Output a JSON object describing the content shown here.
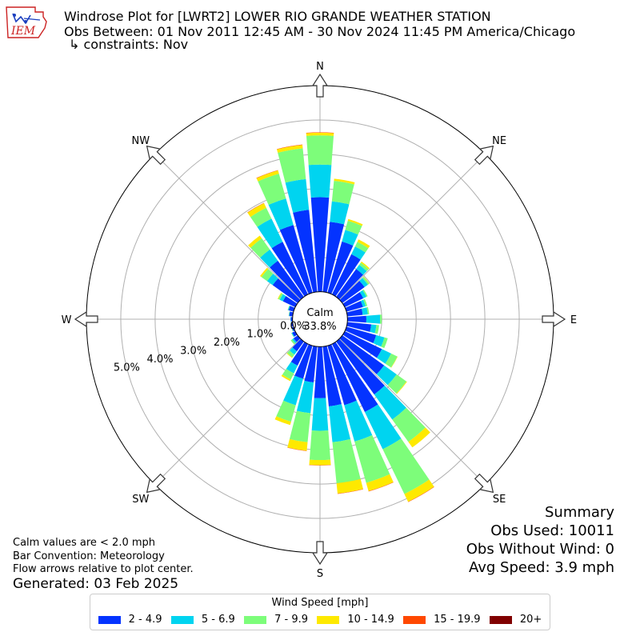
{
  "header": {
    "title_line1": "Windrose Plot for [LWRT2] LOWER RIO GRANDE WEATHER STATION",
    "title_line2": "Obs Between: 01 Nov 2011 12:45 AM - 30 Nov 2024 11:45 PM America/Chicago",
    "title_line3": "↳ constraints: Nov"
  },
  "logo": {
    "text": "IEM",
    "color": "#cc2222"
  },
  "notes": {
    "calm_note": "Calm values are < 2.0 mph",
    "bar_convention": "Bar Convention: Meteorology",
    "flow_note": "Flow arrows relative to plot center.",
    "generated": "Generated: 03 Feb 2025"
  },
  "summary": {
    "heading": "Summary",
    "obs_used": "Obs Used: 10011",
    "obs_without_wind": "Obs Without Wind: 0",
    "avg_speed": "Avg Speed: 3.9 mph"
  },
  "legend": {
    "title": "Wind Speed [mph]",
    "items": [
      {
        "label": "2 - 4.9",
        "color": "#0433ff"
      },
      {
        "label": "5 - 6.9",
        "color": "#00d4f0"
      },
      {
        "label": "7 - 9.9",
        "color": "#7dfd7a"
      },
      {
        "label": "10 - 14.9",
        "color": "#fee900"
      },
      {
        "label": "15 - 19.9",
        "color": "#ff4800"
      },
      {
        "label": "20+",
        "color": "#800000"
      }
    ]
  },
  "chart_data": {
    "type": "windrose",
    "calm_label": "Calm",
    "calm_percent": "33.8%",
    "radial_offset_percent": 0.8,
    "rmax_percent": 6.0,
    "radial_ticks": [
      "0.0%",
      "1.0%",
      "2.0%",
      "3.0%",
      "4.0%",
      "5.0%"
    ],
    "directions": [
      "N",
      "NE",
      "E",
      "SE",
      "S",
      "SW",
      "W",
      "NW"
    ],
    "bin_labels": [
      "2 - 4.9",
      "5 - 6.9",
      "7 - 9.9",
      "10 - 14.9",
      "15 - 19.9",
      "20+"
    ],
    "bin_colors": [
      "#0433ff",
      "#00d4f0",
      "#7dfd7a",
      "#fee900",
      "#ff4800",
      "#800000"
    ],
    "sectors": [
      {
        "dir": 0,
        "values": [
          2.75,
          0.95,
          0.85,
          0.08,
          0.01,
          0
        ]
      },
      {
        "dir": 10,
        "values": [
          2.05,
          0.6,
          0.6,
          0.06,
          0,
          0
        ]
      },
      {
        "dir": 20,
        "values": [
          1.55,
          0.35,
          0.28,
          0.05,
          0,
          0
        ]
      },
      {
        "dir": 30,
        "values": [
          1.3,
          0.25,
          0.15,
          0.08,
          0,
          0
        ]
      },
      {
        "dir": 40,
        "values": [
          1.0,
          0.15,
          0.08,
          0.04,
          0,
          0
        ]
      },
      {
        "dir": 50,
        "values": [
          0.8,
          0.12,
          0.05,
          0.01,
          0,
          0
        ]
      },
      {
        "dir": 60,
        "values": [
          0.6,
          0.1,
          0.04,
          0,
          0,
          0
        ]
      },
      {
        "dir": 70,
        "values": [
          0.5,
          0.08,
          0.05,
          0,
          0,
          0
        ]
      },
      {
        "dir": 80,
        "values": [
          0.45,
          0.15,
          0.04,
          0,
          0,
          0
        ]
      },
      {
        "dir": 90,
        "values": [
          0.55,
          0.4,
          0.05,
          0,
          0,
          0
        ]
      },
      {
        "dir": 100,
        "values": [
          0.7,
          0.15,
          0.08,
          0,
          0,
          0
        ]
      },
      {
        "dir": 110,
        "values": [
          0.9,
          0.25,
          0.1,
          0,
          0,
          0
        ]
      },
      {
        "dir": 120,
        "values": [
          1.2,
          0.3,
          0.2,
          0.01,
          0,
          0
        ]
      },
      {
        "dir": 130,
        "values": [
          1.5,
          0.45,
          0.35,
          0.02,
          0,
          0
        ]
      },
      {
        "dir": 140,
        "values": [
          1.9,
          0.9,
          0.8,
          0.2,
          0,
          0
        ]
      },
      {
        "dir": 150,
        "values": [
          2.2,
          1.2,
          1.45,
          0.25,
          0.01,
          0
        ]
      },
      {
        "dir": 160,
        "values": [
          1.8,
          1.1,
          1.25,
          0.25,
          0.01,
          0
        ]
      },
      {
        "dir": 170,
        "values": [
          1.75,
          1.05,
          1.2,
          0.3,
          0.01,
          0
        ]
      },
      {
        "dir": 180,
        "values": [
          1.5,
          0.95,
          0.85,
          0.15,
          0.01,
          0
        ]
      },
      {
        "dir": 190,
        "values": [
          1.05,
          0.9,
          0.85,
          0.25,
          0.01,
          0
        ]
      },
      {
        "dir": 200,
        "values": [
          1.0,
          0.8,
          0.5,
          0.1,
          0,
          0
        ]
      },
      {
        "dir": 210,
        "values": [
          0.7,
          0.25,
          0.2,
          0.05,
          0,
          0
        ]
      },
      {
        "dir": 220,
        "values": [
          0.35,
          0.12,
          0.1,
          0.02,
          0,
          0
        ]
      },
      {
        "dir": 230,
        "values": [
          0.15,
          0.05,
          0.05,
          0,
          0,
          0
        ]
      },
      {
        "dir": 240,
        "values": [
          0.1,
          0.02,
          0.01,
          0,
          0,
          0
        ]
      },
      {
        "dir": 250,
        "values": [
          0.05,
          0.01,
          0.01,
          0,
          0,
          0
        ]
      },
      {
        "dir": 260,
        "values": [
          0.05,
          0.01,
          0,
          0,
          0,
          0
        ]
      },
      {
        "dir": 270,
        "values": [
          0.05,
          0.01,
          0,
          0,
          0,
          0
        ]
      },
      {
        "dir": 280,
        "values": [
          0.1,
          0.01,
          0.01,
          0,
          0,
          0
        ]
      },
      {
        "dir": 290,
        "values": [
          0.15,
          0.02,
          0.01,
          0,
          0,
          0
        ]
      },
      {
        "dir": 300,
        "values": [
          0.4,
          0.1,
          0.05,
          0.02,
          0,
          0
        ]
      },
      {
        "dir": 310,
        "values": [
          0.9,
          0.2,
          0.2,
          0.05,
          0,
          0
        ]
      },
      {
        "dir": 320,
        "values": [
          1.3,
          0.4,
          0.4,
          0.1,
          0,
          0
        ]
      },
      {
        "dir": 330,
        "values": [
          1.7,
          0.75,
          0.35,
          0.15,
          0.01,
          0
        ]
      },
      {
        "dir": 340,
        "values": [
          2.05,
          0.8,
          0.75,
          0.1,
          0.01,
          0
        ]
      },
      {
        "dir": 350,
        "values": [
          2.4,
          0.9,
          0.9,
          0.1,
          0.01,
          0
        ]
      }
    ]
  }
}
